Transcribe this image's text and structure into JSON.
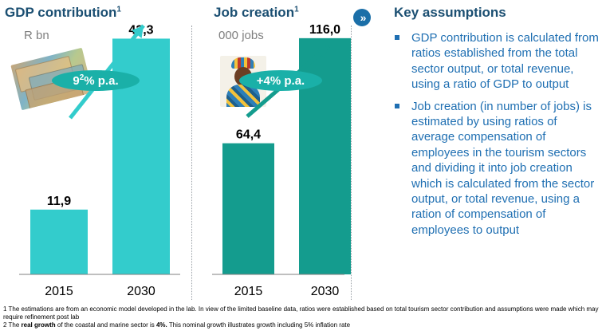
{
  "gdp_panel": {
    "title": "GDP contribution",
    "title_note": "1",
    "unit": "R bn",
    "growth": {
      "main": "9",
      "sup": "2",
      "suffix": "% p.a."
    },
    "image": "money-banknotes-photo"
  },
  "jobs_panel": {
    "title": "Job creation",
    "title_note": "1",
    "unit": "000 jobs",
    "growth": {
      "main": "+4% p.a."
    },
    "image": "person-in-traditional-attire-photo"
  },
  "chart_data": [
    {
      "type": "bar",
      "categories": [
        "2015",
        "2030"
      ],
      "values": [
        11.9,
        43.3
      ],
      "value_labels": [
        "11,9",
        "43,3"
      ],
      "ylabel": "R bn",
      "color": "#33cccc",
      "ylim": [
        0,
        46
      ]
    },
    {
      "type": "bar",
      "categories": [
        "2015",
        "2030"
      ],
      "values": [
        64.4,
        116.0
      ],
      "value_labels": [
        "64,4",
        "116,0"
      ],
      "ylabel": "000 jobs",
      "color": "#149c8e",
      "ylim": [
        0,
        123
      ]
    }
  ],
  "key_assumptions": {
    "title": "Key assumptions",
    "items": [
      "GDP contribution is calculated from ratios established from the total sector output, or total revenue, using a ratio of GDP to output",
      "Job creation (in number of jobs) is estimated by using ratios of average compensation of employees in the tourism sectors and dividing it into job creation which is calculated from the sector output, or total revenue, using a ration of compensation of employees to output"
    ]
  },
  "footnotes": {
    "f1": "1 The estimations are from an economic model developed in the lab. In view of the limited baseline data, ratios were established based on total tourism sector contribution and assumptions were made which may require refinement post lab",
    "f2_pre": "2 The ",
    "f2_bold1": "real growth",
    "f2_mid": " of the coastal and marine sector is ",
    "f2_bold2": "4%.",
    "f2_post": " This nominal growth illustrates growth including 5% inflation rate"
  },
  "colors": {
    "title": "#1b4f72",
    "gdp_bar": "#33cccc",
    "jobs_bar": "#149c8e",
    "growth_pill": "#1ab0a8",
    "assumption_text": "#1f6fb2"
  }
}
